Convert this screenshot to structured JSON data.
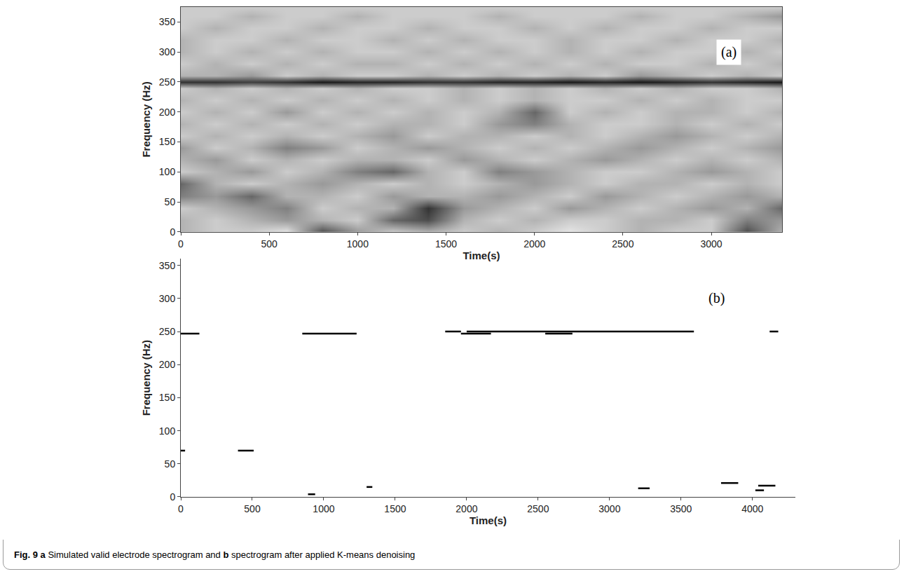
{
  "chart_data": [
    {
      "type": "heatmap",
      "panel_label": "(a)",
      "xlabel": "Time(s)",
      "ylabel": "Frequency (Hz)",
      "xlim": [
        0,
        3400
      ],
      "xticks": [
        0,
        500,
        1000,
        1500,
        2000,
        2500,
        3000
      ],
      "ylim": [
        0,
        375
      ],
      "yticks": [
        0,
        50,
        100,
        150,
        200,
        250,
        300,
        350
      ],
      "label_position": [
        3100,
        300
      ],
      "zlim": [
        0,
        1
      ],
      "x": [
        0,
        200,
        400,
        600,
        800,
        1000,
        1200,
        1400,
        1600,
        1800,
        2000,
        2200,
        2400,
        2600,
        2800,
        3000,
        3200,
        3400
      ],
      "y": [
        0,
        20,
        40,
        60,
        80,
        100,
        120,
        140,
        160,
        180,
        200,
        220,
        240,
        250,
        260,
        280,
        300,
        320,
        340,
        360,
        375
      ],
      "z": [
        [
          0.3,
          0.2,
          0.2,
          0.1,
          0.7,
          0.4,
          0.2,
          0.3,
          0.2,
          0.3,
          0.2,
          0.1,
          0.2,
          0.3,
          0.2,
          0.2,
          0.7,
          0.3
        ],
        [
          0.3,
          0.2,
          0.3,
          0.4,
          0.3,
          0.2,
          0.6,
          0.7,
          0.3,
          0.2,
          0.3,
          0.2,
          0.2,
          0.3,
          0.3,
          0.2,
          0.5,
          0.4
        ],
        [
          0.2,
          0.3,
          0.4,
          0.5,
          0.2,
          0.3,
          0.3,
          0.8,
          0.4,
          0.3,
          0.2,
          0.4,
          0.3,
          0.2,
          0.3,
          0.4,
          0.3,
          0.6
        ],
        [
          0.5,
          0.4,
          0.6,
          0.3,
          0.3,
          0.2,
          0.4,
          0.3,
          0.3,
          0.4,
          0.3,
          0.2,
          0.4,
          0.3,
          0.2,
          0.3,
          0.4,
          0.3
        ],
        [
          0.6,
          0.3,
          0.2,
          0.3,
          0.4,
          0.3,
          0.2,
          0.3,
          0.2,
          0.3,
          0.4,
          0.3,
          0.2,
          0.3,
          0.3,
          0.2,
          0.3,
          0.2
        ],
        [
          0.2,
          0.3,
          0.4,
          0.2,
          0.3,
          0.5,
          0.6,
          0.3,
          0.2,
          0.5,
          0.4,
          0.3,
          0.2,
          0.2,
          0.3,
          0.4,
          0.3,
          0.2
        ],
        [
          0.3,
          0.4,
          0.2,
          0.3,
          0.2,
          0.3,
          0.3,
          0.2,
          0.4,
          0.3,
          0.2,
          0.3,
          0.4,
          0.3,
          0.2,
          0.3,
          0.2,
          0.3
        ],
        [
          0.4,
          0.2,
          0.3,
          0.5,
          0.4,
          0.2,
          0.3,
          0.4,
          0.3,
          0.2,
          0.3,
          0.2,
          0.3,
          0.4,
          0.3,
          0.2,
          0.3,
          0.4
        ],
        [
          0.2,
          0.3,
          0.2,
          0.3,
          0.2,
          0.3,
          0.4,
          0.2,
          0.3,
          0.3,
          0.2,
          0.3,
          0.2,
          0.3,
          0.4,
          0.3,
          0.2,
          0.3
        ],
        [
          0.3,
          0.2,
          0.3,
          0.2,
          0.3,
          0.2,
          0.3,
          0.3,
          0.2,
          0.4,
          0.5,
          0.3,
          0.2,
          0.2,
          0.3,
          0.2,
          0.3,
          0.2
        ],
        [
          0.2,
          0.3,
          0.2,
          0.4,
          0.2,
          0.3,
          0.2,
          0.3,
          0.2,
          0.3,
          0.6,
          0.2,
          0.3,
          0.2,
          0.3,
          0.3,
          0.2,
          0.3
        ],
        [
          0.3,
          0.2,
          0.3,
          0.2,
          0.3,
          0.2,
          0.3,
          0.2,
          0.3,
          0.2,
          0.3,
          0.2,
          0.2,
          0.3,
          0.2,
          0.3,
          0.2,
          0.2
        ],
        [
          0.2,
          0.3,
          0.2,
          0.3,
          0.2,
          0.3,
          0.2,
          0.2,
          0.3,
          0.2,
          0.3,
          0.2,
          0.3,
          0.2,
          0.3,
          0.2,
          0.2,
          0.3
        ],
        [
          0.8,
          0.8,
          0.75,
          0.8,
          0.9,
          0.85,
          0.85,
          0.8,
          0.8,
          0.85,
          0.85,
          0.9,
          0.85,
          0.9,
          0.85,
          0.8,
          0.85,
          0.9
        ],
        [
          0.3,
          0.3,
          0.4,
          0.2,
          0.3,
          0.2,
          0.2,
          0.3,
          0.2,
          0.3,
          0.2,
          0.3,
          0.2,
          0.4,
          0.3,
          0.2,
          0.3,
          0.2
        ],
        [
          0.2,
          0.3,
          0.2,
          0.3,
          0.2,
          0.3,
          0.3,
          0.2,
          0.3,
          0.2,
          0.3,
          0.2,
          0.3,
          0.2,
          0.2,
          0.3,
          0.2,
          0.3
        ],
        [
          0.3,
          0.2,
          0.3,
          0.2,
          0.3,
          0.2,
          0.2,
          0.3,
          0.2,
          0.3,
          0.2,
          0.3,
          0.2,
          0.3,
          0.2,
          0.2,
          0.3,
          0.2
        ],
        [
          0.3,
          0.2,
          0.2,
          0.3,
          0.2,
          0.2,
          0.3,
          0.2,
          0.3,
          0.2,
          0.2,
          0.3,
          0.2,
          0.2,
          0.3,
          0.2,
          0.2,
          0.3
        ],
        [
          0.2,
          0.3,
          0.2,
          0.2,
          0.3,
          0.2,
          0.2,
          0.3,
          0.2,
          0.2,
          0.3,
          0.2,
          0.3,
          0.2,
          0.2,
          0.3,
          0.2,
          0.2
        ],
        [
          0.2,
          0.2,
          0.3,
          0.2,
          0.2,
          0.3,
          0.2,
          0.2,
          0.2,
          0.3,
          0.2,
          0.2,
          0.2,
          0.3,
          0.2,
          0.2,
          0.3,
          0.4
        ],
        [
          0.2,
          0.2,
          0.2,
          0.2,
          0.2,
          0.2,
          0.2,
          0.2,
          0.2,
          0.2,
          0.2,
          0.2,
          0.2,
          0.2,
          0.2,
          0.2,
          0.2,
          0.2
        ]
      ]
    },
    {
      "type": "segments",
      "panel_label": "(b)",
      "xlabel": "Time(s)",
      "ylabel": "Frequency (Hz)",
      "xlim": [
        0,
        4300
      ],
      "xticks": [
        0,
        500,
        1000,
        1500,
        2000,
        2500,
        3000,
        3500,
        4000
      ],
      "ylim": [
        0,
        360
      ],
      "yticks": [
        0,
        50,
        100,
        150,
        200,
        250,
        300,
        350
      ],
      "label_position": [
        3750,
        300
      ],
      "color": "#000000",
      "segments": [
        {
          "x": [
            0,
            130
          ],
          "y": 247
        },
        {
          "x": [
            0,
            30
          ],
          "y": 70
        },
        {
          "x": [
            400,
            510
          ],
          "y": 70
        },
        {
          "x": [
            850,
            1230
          ],
          "y": 247
        },
        {
          "x": [
            890,
            940
          ],
          "y": 4
        },
        {
          "x": [
            1300,
            1340
          ],
          "y": 15
        },
        {
          "x": [
            1850,
            1960
          ],
          "y": 250
        },
        {
          "x": [
            1960,
            2170
          ],
          "y": 247
        },
        {
          "x": [
            2000,
            3590
          ],
          "y": 250
        },
        {
          "x": [
            2550,
            2740
          ],
          "y": 247
        },
        {
          "x": [
            3200,
            3280
          ],
          "y": 13
        },
        {
          "x": [
            3780,
            3900
          ],
          "y": 21
        },
        {
          "x": [
            4020,
            4080
          ],
          "y": 10
        },
        {
          "x": [
            4040,
            4160
          ],
          "y": 17
        },
        {
          "x": [
            4120,
            4180
          ],
          "y": 250
        }
      ]
    }
  ],
  "caption": {
    "label": "Fig. 9",
    "parts": [
      {
        "letter": "a",
        "text": "Simulated valid electrode spectrogram and"
      },
      {
        "letter": "b",
        "text": "spectrogram after applied K-means denoising"
      }
    ]
  }
}
